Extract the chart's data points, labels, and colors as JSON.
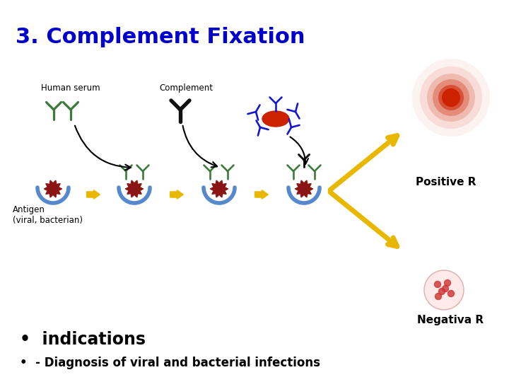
{
  "title": "3. Complement Fixation",
  "title_color": "#0000CC",
  "title_fontsize": 22,
  "bg_color": "#FFFFFF",
  "label_human_serum": "Human serum",
  "label_complement": "Complement",
  "label_antigen": "Antigen\n(viral, bacterian)",
  "label_positive": "Positive R",
  "label_negative": "Negativa R",
  "bullet1": "indications",
  "bullet2": "- Diagnosis of viral and bacterial infections",
  "antibody_green": "#3A7A3A",
  "antibody_blue": "#1515CC",
  "antibody_dark": "#111111",
  "antigen_color": "#8B1515",
  "cup_color": "#5588CC",
  "arrow_color": "#E8B800",
  "text_color": "#000000",
  "positive_blob_color": "#CC2200",
  "negative_blob_outer": "#FFCCCC",
  "negative_spot_color": "#CC3333"
}
